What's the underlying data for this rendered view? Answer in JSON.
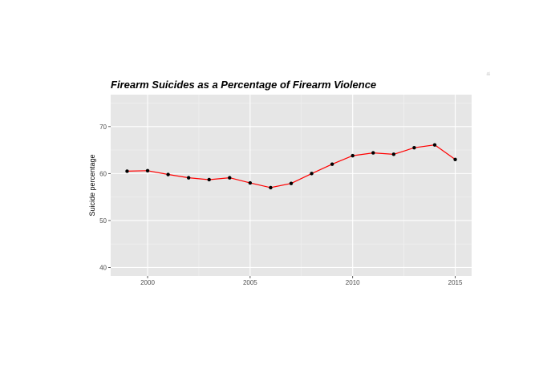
{
  "chart_data": {
    "type": "line",
    "title": "Firearm Suicides as a Percentage of Firearm Violence",
    "xlabel": "",
    "ylabel": "Suicide percentage",
    "xlim": [
      1998.2,
      2015.8
    ],
    "ylim": [
      38.2,
      76.8
    ],
    "x_ticks": [
      2000,
      2005,
      2010,
      2015
    ],
    "y_ticks": [
      40,
      50,
      60,
      70
    ],
    "grid": true,
    "legend": "none",
    "series": [
      {
        "x": [
          1999,
          2000,
          2001,
          2002,
          2003,
          2004,
          2005,
          2006,
          2007,
          2008,
          2009,
          2010,
          2011,
          2012,
          2013,
          2014,
          2015
        ],
        "y": [
          60.5,
          60.6,
          59.8,
          59.1,
          58.7,
          59.1,
          58.0,
          57.0,
          57.9,
          60.0,
          62.0,
          63.8,
          64.4,
          64.1,
          65.5,
          66.1,
          63.0
        ],
        "color": "#ff0000",
        "marker_color": "#000000"
      }
    ]
  },
  "corner_mark": "≝",
  "colors": {
    "panel": "#e6e6e6",
    "grid_major": "#ffffff",
    "line": "#ff0000",
    "points": "#000000"
  }
}
